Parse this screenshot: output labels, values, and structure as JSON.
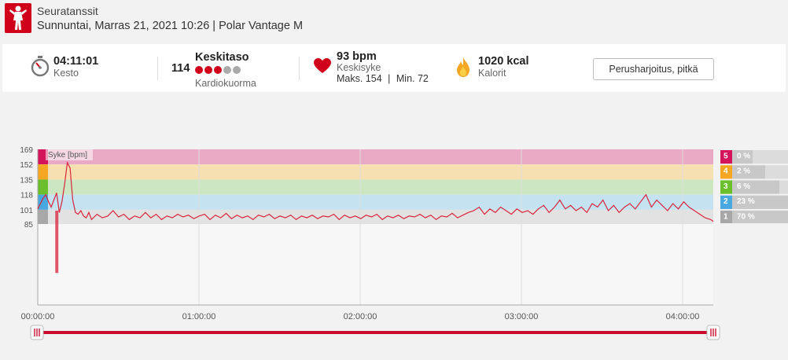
{
  "header": {
    "logo_icon": "dancer-icon",
    "sport": "Seuratanssit",
    "subtitle": "Sunnuntai, Marras 21, 2021 10:26 | Polar Vantage M"
  },
  "summary": {
    "duration": {
      "icon": "stopwatch-icon",
      "value": "04:11:01",
      "label": "Kesto"
    },
    "load": {
      "value": "114",
      "title": "Keskitaso",
      "label": "Kardiokuorma",
      "dots_filled": 3,
      "dots_total": 5
    },
    "heart": {
      "icon": "heart-icon",
      "value": "93 bpm",
      "label": "Keskisyke",
      "max": "Maks. 154",
      "sep": "|",
      "min": "Min. 72"
    },
    "calories": {
      "icon": "flame-icon",
      "value": "1020 kcal",
      "label": "Kalorit"
    },
    "button_label": "Perusharjoitus, pitkä"
  },
  "chart_data": {
    "type": "line",
    "series_label": "Syke [bpm]",
    "y_ticks": [
      "169",
      "152",
      "135",
      "118",
      "101",
      "85"
    ],
    "x_ticks": [
      "00:00:00",
      "01:00:00",
      "02:00:00",
      "03:00:00",
      "04:00:00"
    ],
    "zones": [
      {
        "zone": "5",
        "from": 152,
        "to": 169,
        "color": "#eaa9c4",
        "badge": "#d4145a",
        "pct": "0 %"
      },
      {
        "zone": "4",
        "from": 135,
        "to": 152,
        "color": "#f6e0b2",
        "badge": "#f5a623",
        "pct": "2 %"
      },
      {
        "zone": "3",
        "from": 118,
        "to": 135,
        "color": "#cde6c2",
        "badge": "#6cbf2c",
        "pct": "6 %"
      },
      {
        "zone": "2",
        "from": 101,
        "to": 118,
        "color": "#c4e2f0",
        "badge": "#4aa8e0",
        "pct": "23 %"
      },
      {
        "zone": "1",
        "from": 85,
        "to": 101,
        "color": "#e2e2e2",
        "badge": "#a8a8a8",
        "pct": "70 %"
      }
    ],
    "x_range_min": [
      0,
      251
    ],
    "heart_rate_samples": [
      [
        0,
        102
      ],
      [
        1,
        108
      ],
      [
        2,
        114
      ],
      [
        3,
        118
      ],
      [
        4,
        110
      ],
      [
        5,
        104
      ],
      [
        6,
        112
      ],
      [
        7,
        120
      ],
      [
        8,
        98
      ],
      [
        9,
        110
      ],
      [
        10,
        130
      ],
      [
        11,
        154
      ],
      [
        12,
        148
      ],
      [
        13,
        112
      ],
      [
        14,
        98
      ],
      [
        15,
        96
      ],
      [
        16,
        100
      ],
      [
        17,
        94
      ],
      [
        18,
        92
      ],
      [
        19,
        98
      ],
      [
        20,
        90
      ],
      [
        22,
        96
      ],
      [
        24,
        92
      ],
      [
        26,
        94
      ],
      [
        28,
        100
      ],
      [
        30,
        93
      ],
      [
        32,
        96
      ],
      [
        34,
        90
      ],
      [
        36,
        94
      ],
      [
        38,
        92
      ],
      [
        40,
        98
      ],
      [
        42,
        92
      ],
      [
        44,
        96
      ],
      [
        46,
        90
      ],
      [
        48,
        94
      ],
      [
        50,
        92
      ],
      [
        52,
        96
      ],
      [
        54,
        93
      ],
      [
        56,
        95
      ],
      [
        58,
        91
      ],
      [
        60,
        94
      ],
      [
        62,
        96
      ],
      [
        64,
        90
      ],
      [
        66,
        95
      ],
      [
        68,
        92
      ],
      [
        70,
        97
      ],
      [
        72,
        91
      ],
      [
        74,
        95
      ],
      [
        76,
        92
      ],
      [
        78,
        94
      ],
      [
        80,
        90
      ],
      [
        82,
        95
      ],
      [
        84,
        93
      ],
      [
        86,
        96
      ],
      [
        88,
        91
      ],
      [
        90,
        94
      ],
      [
        92,
        92
      ],
      [
        94,
        95
      ],
      [
        96,
        90
      ],
      [
        98,
        94
      ],
      [
        100,
        92
      ],
      [
        102,
        95
      ],
      [
        104,
        91
      ],
      [
        106,
        94
      ],
      [
        108,
        93
      ],
      [
        110,
        96
      ],
      [
        112,
        90
      ],
      [
        114,
        95
      ],
      [
        116,
        92
      ],
      [
        118,
        94
      ],
      [
        120,
        91
      ],
      [
        122,
        95
      ],
      [
        124,
        93
      ],
      [
        126,
        96
      ],
      [
        128,
        90
      ],
      [
        130,
        94
      ],
      [
        132,
        92
      ],
      [
        134,
        95
      ],
      [
        136,
        91
      ],
      [
        138,
        94
      ],
      [
        140,
        93
      ],
      [
        142,
        96
      ],
      [
        144,
        92
      ],
      [
        146,
        95
      ],
      [
        148,
        90
      ],
      [
        150,
        94
      ],
      [
        152,
        93
      ],
      [
        154,
        97
      ],
      [
        156,
        92
      ],
      [
        158,
        95
      ],
      [
        160,
        98
      ],
      [
        162,
        100
      ],
      [
        164,
        104
      ],
      [
        166,
        96
      ],
      [
        168,
        102
      ],
      [
        170,
        98
      ],
      [
        172,
        104
      ],
      [
        174,
        100
      ],
      [
        176,
        96
      ],
      [
        178,
        102
      ],
      [
        180,
        98
      ],
      [
        182,
        100
      ],
      [
        184,
        96
      ],
      [
        186,
        102
      ],
      [
        188,
        106
      ],
      [
        190,
        98
      ],
      [
        192,
        104
      ],
      [
        194,
        112
      ],
      [
        196,
        102
      ],
      [
        198,
        106
      ],
      [
        200,
        100
      ],
      [
        202,
        104
      ],
      [
        204,
        98
      ],
      [
        206,
        108
      ],
      [
        208,
        104
      ],
      [
        210,
        112
      ],
      [
        212,
        100
      ],
      [
        214,
        106
      ],
      [
        216,
        98
      ],
      [
        218,
        104
      ],
      [
        220,
        108
      ],
      [
        222,
        102
      ],
      [
        224,
        110
      ],
      [
        226,
        118
      ],
      [
        228,
        104
      ],
      [
        230,
        112
      ],
      [
        232,
        106
      ],
      [
        234,
        100
      ],
      [
        236,
        108
      ],
      [
        238,
        102
      ],
      [
        240,
        110
      ],
      [
        242,
        104
      ],
      [
        244,
        100
      ],
      [
        246,
        96
      ],
      [
        248,
        92
      ],
      [
        250,
        90
      ],
      [
        251,
        88
      ]
    ],
    "spikes": [
      {
        "t": 6.8,
        "low": 30
      },
      {
        "t": 7.4,
        "low": 30
      }
    ]
  },
  "slider": {
    "left_handle": "drag-handle-icon",
    "right_handle": "drag-handle-icon"
  }
}
